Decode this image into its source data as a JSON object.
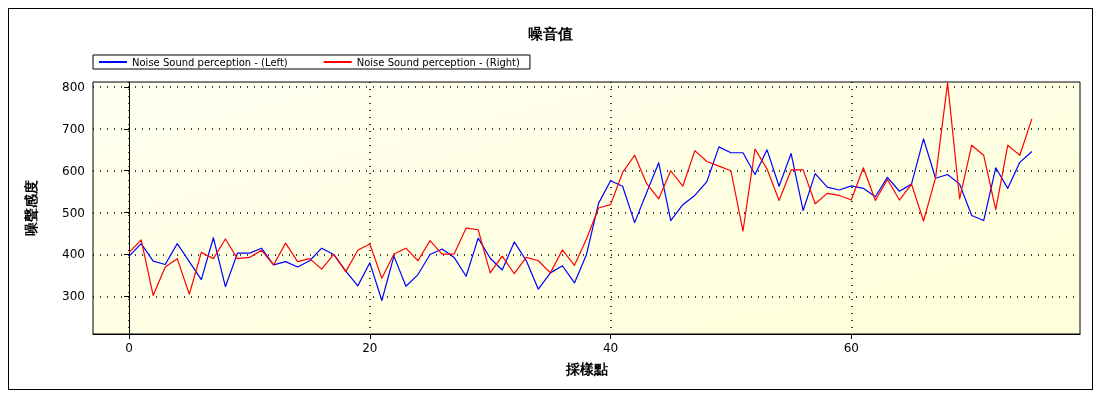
{
  "chart_data": {
    "type": "line",
    "title": "噪音值",
    "xlabel": "採樣點",
    "ylabel": "噪聲感度",
    "x": [
      0,
      1,
      2,
      3,
      4,
      5,
      6,
      7,
      8,
      9,
      10,
      11,
      12,
      13,
      14,
      15,
      16,
      17,
      18,
      19,
      20,
      21,
      22,
      23,
      24,
      25,
      26,
      27,
      28,
      29,
      30,
      31,
      32,
      33,
      34,
      35,
      36,
      37,
      38,
      39,
      40,
      41,
      42,
      43,
      44,
      45,
      46,
      47,
      48,
      49,
      50,
      51,
      52,
      53,
      54,
      55,
      56,
      57,
      58,
      59,
      60,
      61,
      62,
      63,
      64,
      65,
      66,
      67,
      68,
      69,
      70,
      71,
      72,
      73,
      74,
      75
    ],
    "series": [
      {
        "name": "Noise Sound perception - (Left)",
        "color": "#0000ff",
        "values": [
          396,
          426,
          384,
          376,
          426,
          383,
          340,
          440,
          323,
          403,
          403,
          415,
          375,
          383,
          370,
          385,
          415,
          400,
          360,
          325,
          380,
          290,
          396,
          324,
          352,
          400,
          413,
          393,
          348,
          439,
          391,
          363,
          430,
          385,
          317,
          356,
          373,
          332,
          400,
          522,
          576,
          563,
          476,
          548,
          619,
          481,
          519,
          541,
          574,
          657,
          643,
          643,
          591,
          650,
          563,
          641,
          505,
          593,
          561,
          554,
          564,
          558,
          538,
          584,
          551,
          568,
          676,
          582,
          591,
          568,
          493,
          481,
          607,
          558,
          620,
          646
        ]
      },
      {
        "name": "Noise Sound perception - (Right)",
        "color": "#ff0000",
        "values": [
          405,
          435,
          302,
          370,
          390,
          305,
          405,
          390,
          437,
          390,
          393,
          410,
          375,
          427,
          383,
          390,
          365,
          400,
          359,
          410,
          425,
          343,
          401,
          415,
          385,
          433,
          401,
          401,
          463,
          459,
          356,
          396,
          354,
          393,
          385,
          356,
          411,
          374,
          437,
          511,
          519,
          596,
          637,
          569,
          533,
          600,
          563,
          648,
          622,
          611,
          600,
          456,
          652,
          604,
          529,
          602,
          602,
          521,
          546,
          541,
          530,
          607,
          529,
          579,
          530,
          568,
          480,
          583,
          810,
          533,
          661,
          637,
          507,
          661,
          637,
          724
        ]
      }
    ],
    "xlim": [
      -3,
      79
    ],
    "xticks": [
      0,
      20,
      40,
      60
    ],
    "ylim": [
      210,
      812
    ],
    "yticks": [
      300,
      400,
      500,
      600,
      700,
      800
    ],
    "grid": true,
    "legend": "top left",
    "line_style": "solid",
    "marker": "none"
  }
}
